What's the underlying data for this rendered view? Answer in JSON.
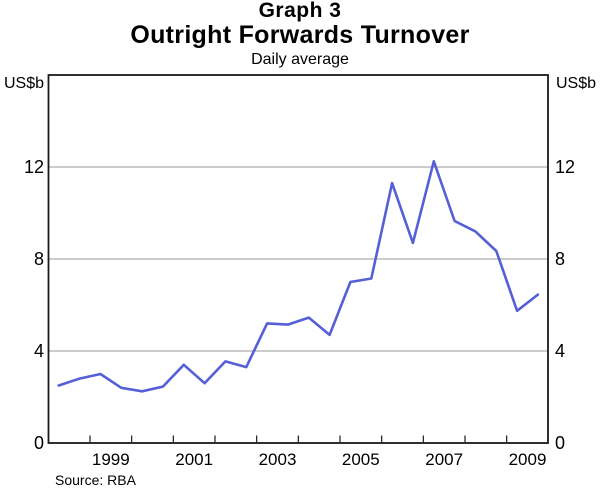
{
  "header": {
    "graph_label": "Graph 3",
    "title": "Outright Forwards Turnover",
    "subtitle": "Daily average"
  },
  "axes": {
    "unit_left": "US$b",
    "unit_right": "US$b",
    "ytick_labels": [
      "12",
      "8",
      "4",
      "0"
    ],
    "xlabel_ticks": [
      "1999",
      "2001",
      "2003",
      "2005",
      "2007",
      "2009"
    ]
  },
  "source": "Source: RBA",
  "colors": {
    "line": "#5560d6",
    "gridline": "#999999",
    "axis": "#1a1a1a",
    "background": "#ffffff"
  },
  "chart_data": {
    "type": "line",
    "title": "Outright Forwards Turnover",
    "subtitle": "Daily average",
    "ylabel": "US$b",
    "ylim": [
      0,
      16
    ],
    "ytick_values": [
      12,
      8,
      4,
      0
    ],
    "gridline_values": [
      12,
      8,
      4
    ],
    "grid": "horizontal-on",
    "legend": "none",
    "xlim": [
      1998.02,
      2009.99
    ],
    "xtick_years": [
      1999,
      2000,
      2001,
      2002,
      2003,
      2004,
      2005,
      2006,
      2007,
      2008,
      2009
    ],
    "xlabel_positions": [
      1999.5,
      2001.5,
      2003.5,
      2005.5,
      2007.5,
      2009.5
    ],
    "series": [
      {
        "name": "Outright forwards turnover (daily average, US$b)",
        "frequency": "semiannual",
        "x": [
          1998.25,
          1998.75,
          1999.25,
          1999.75,
          2000.25,
          2000.75,
          2001.25,
          2001.75,
          2002.25,
          2002.75,
          2003.25,
          2003.75,
          2004.25,
          2004.75,
          2005.25,
          2005.75,
          2006.25,
          2006.75,
          2007.25,
          2007.75,
          2008.25,
          2008.75,
          2009.25,
          2009.75
        ],
        "values": [
          2.5,
          2.8,
          3.0,
          2.4,
          2.25,
          2.45,
          3.4,
          2.6,
          3.55,
          3.3,
          5.2,
          5.15,
          5.45,
          4.7,
          7.0,
          7.15,
          11.3,
          8.7,
          12.25,
          9.65,
          9.2,
          8.35,
          5.75,
          6.45
        ]
      }
    ]
  }
}
